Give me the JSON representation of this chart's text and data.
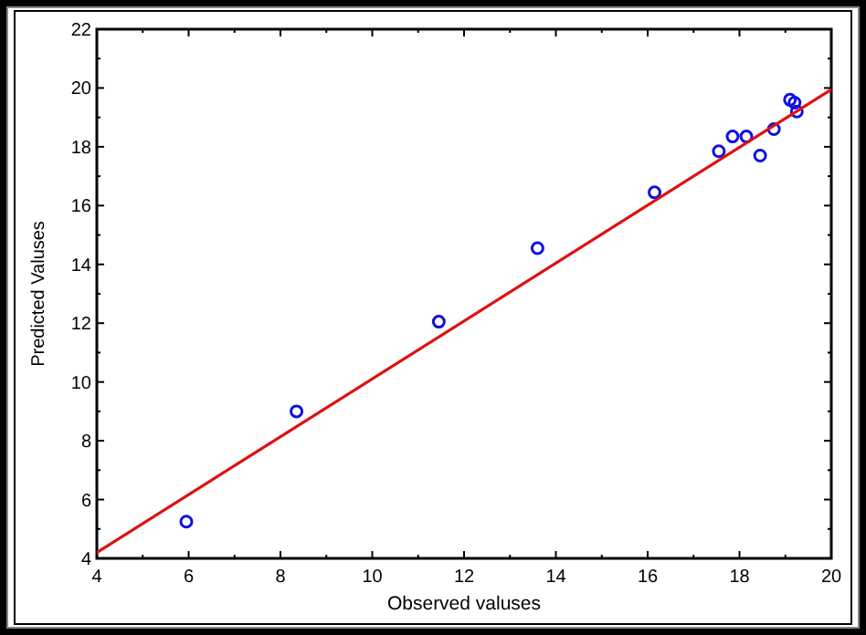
{
  "chart_data": {
    "type": "scatter",
    "xlabel": "Observed valuses",
    "ylabel": "Predicted Valuses",
    "xlim": [
      4,
      20
    ],
    "ylim": [
      4,
      22
    ],
    "xticks": [
      4,
      6,
      8,
      10,
      12,
      14,
      16,
      18,
      20
    ],
    "yticks": [
      4,
      6,
      8,
      10,
      12,
      14,
      16,
      18,
      20,
      22
    ],
    "grid": false,
    "marker": "circle",
    "series": [
      {
        "color": "#1010e0",
        "x": [
          5.95,
          8.35,
          11.45,
          13.6,
          16.15,
          17.55,
          17.85,
          18.15,
          18.45,
          18.75,
          19.1,
          19.2,
          19.25
        ],
        "values": [
          5.25,
          9.0,
          12.05,
          14.55,
          16.45,
          17.85,
          18.35,
          18.35,
          17.7,
          18.6,
          19.6,
          19.5,
          19.2
        ]
      },
      {
        "type": "line",
        "color": "#e01010",
        "x": [
          4,
          20
        ],
        "values": [
          4.2,
          19.95
        ],
        "marker": "none",
        "line_style": "solid"
      }
    ]
  }
}
